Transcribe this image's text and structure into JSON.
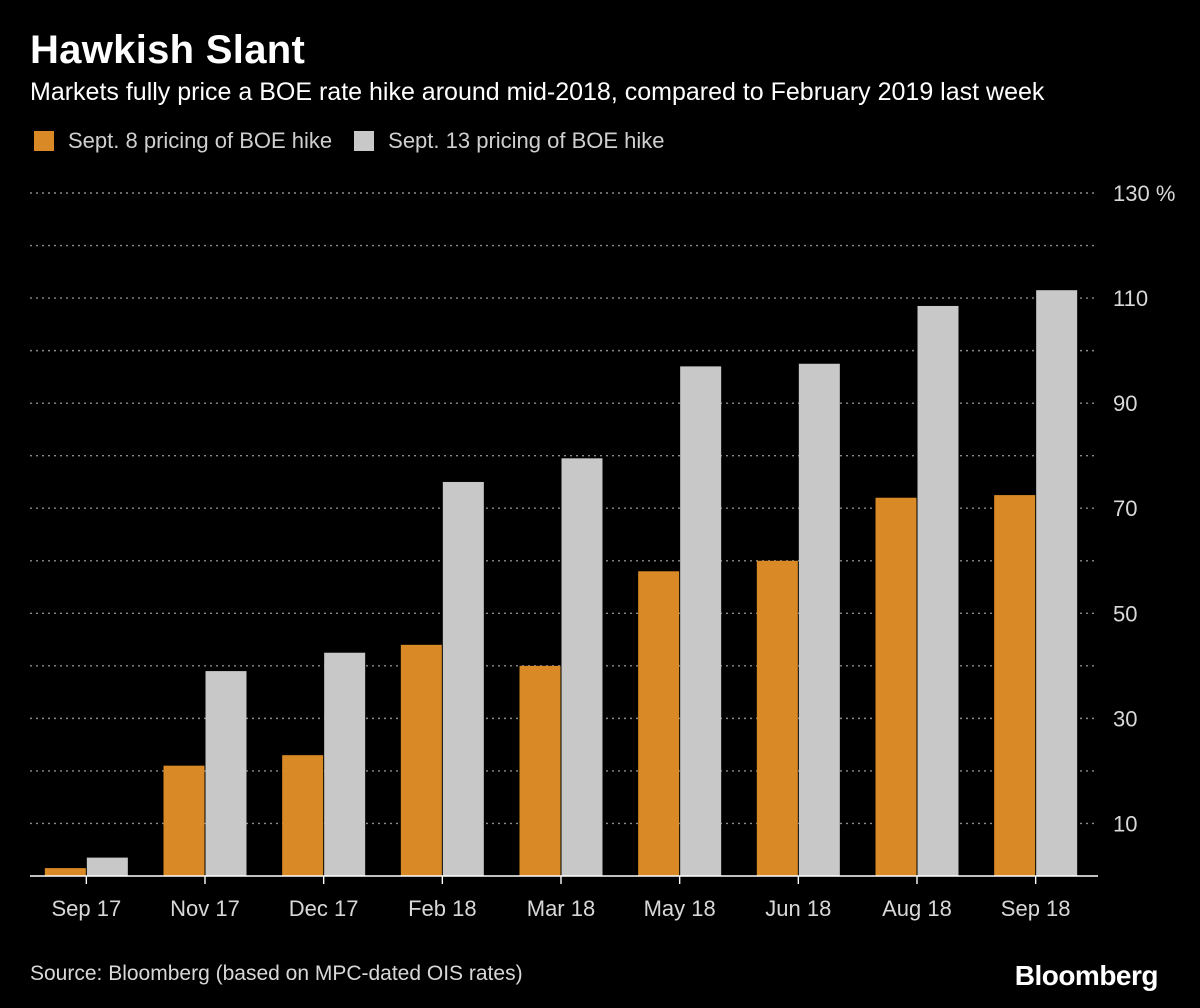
{
  "header": {
    "title": "Hawkish Slant",
    "subtitle": "Markets fully price a BOE rate hike around mid-2018, compared to February 2019 last week"
  },
  "footer": {
    "source": "Source: Bloomberg (based on MPC-dated OIS rates)",
    "brand": "Bloomberg"
  },
  "chart_data": {
    "type": "bar",
    "categories": [
      "Sep 17",
      "Nov 17",
      "Dec 17",
      "Feb 18",
      "Mar 18",
      "May 18",
      "Jun 18",
      "Aug 18",
      "Sep 18"
    ],
    "series": [
      {
        "name": "Sept. 8 pricing of BOE hike",
        "color": "#d98a26",
        "values": [
          1.5,
          21,
          23,
          44,
          40,
          58,
          60,
          72,
          72.5
        ]
      },
      {
        "name": "Sept. 13 pricing of BOE hike",
        "color": "#c8c8c8",
        "values": [
          3.5,
          39,
          42.5,
          75,
          79.5,
          97,
          97.5,
          108.5,
          111.5
        ]
      }
    ],
    "ylim": [
      0,
      130
    ],
    "y_ticks": [
      10,
      30,
      50,
      70,
      90,
      110,
      130
    ],
    "y_tick_labels": [
      "10",
      "30",
      "50",
      "70",
      "90",
      "110",
      "130 %"
    ],
    "grid": true,
    "grid_step": 10,
    "y_axis_side": "right",
    "legend_position": "top-left",
    "xlabel": "",
    "ylabel": ""
  }
}
